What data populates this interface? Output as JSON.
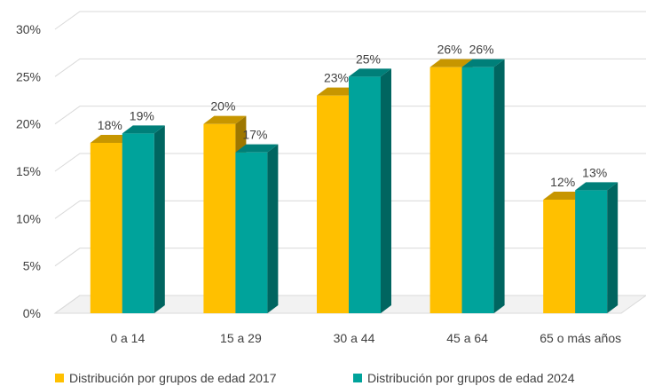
{
  "chart_data": {
    "type": "bar",
    "categories": [
      "0 a 14",
      "15 a 29",
      "30 a 44",
      "45 a 64",
      "65 o más años"
    ],
    "series": [
      {
        "name": "Distribución por grupos de edad 2017",
        "values": [
          18,
          20,
          23,
          26,
          12
        ],
        "labels": [
          "18%",
          "20%",
          "23%",
          "26%",
          "12%"
        ],
        "color": "#FFC000"
      },
      {
        "name": "Distribución por grupos de edad 2024",
        "values": [
          19,
          17,
          25,
          26,
          13
        ],
        "labels": [
          "19%",
          "17%",
          "25%",
          "26%",
          "13%"
        ],
        "color": "#00A39B"
      }
    ],
    "y_ticks": [
      "0%",
      "5%",
      "10%",
      "15%",
      "20%",
      "25%",
      "30%"
    ],
    "ylim": [
      0,
      30
    ],
    "grid": true,
    "legend_position": "bottom",
    "style": "3d-clustered-column"
  }
}
